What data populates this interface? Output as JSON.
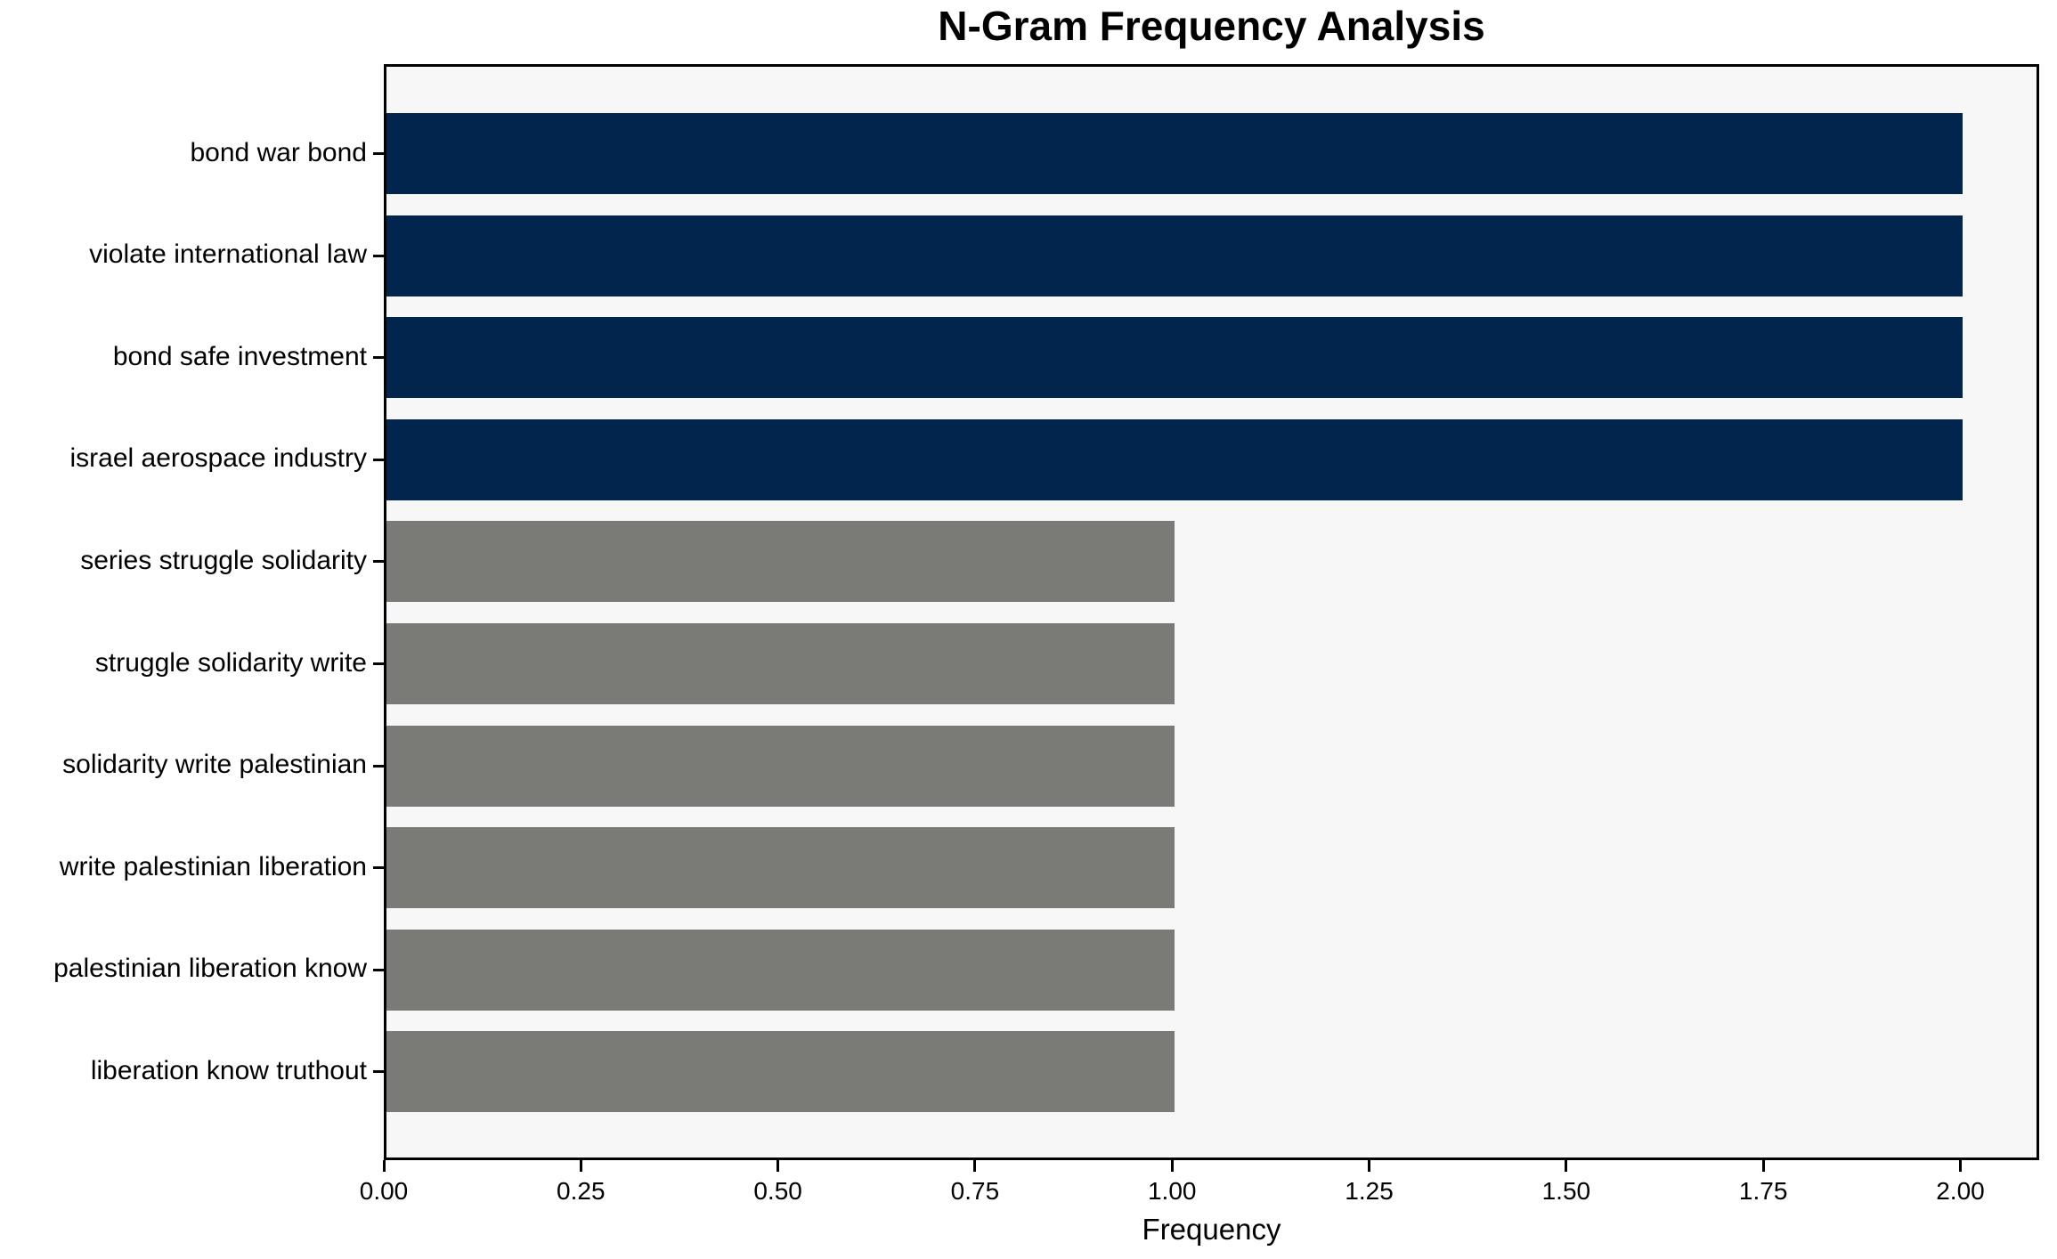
{
  "chart_data": {
    "type": "bar",
    "orientation": "horizontal",
    "title": "N-Gram Frequency Analysis",
    "xlabel": "Frequency",
    "ylabel": "",
    "categories": [
      "bond war bond",
      "violate international law",
      "bond safe investment",
      "israel aerospace industry",
      "series struggle solidarity",
      "struggle solidarity write",
      "solidarity write palestinian",
      "write palestinian liberation",
      "palestinian liberation know",
      "liberation know truthout"
    ],
    "values": [
      2,
      2,
      2,
      2,
      1,
      1,
      1,
      1,
      1,
      1
    ],
    "bar_colors": [
      "#02254e",
      "#02254e",
      "#02254e",
      "#02254e",
      "#7a7a76",
      "#7a7a76",
      "#7a7a76",
      "#7a7a76",
      "#7a7a76",
      "#7a7a76"
    ],
    "xlim": [
      0,
      2.1
    ],
    "x_ticks": [
      0.0,
      0.25,
      0.5,
      0.75,
      1.0,
      1.25,
      1.5,
      1.75,
      2.0
    ],
    "x_tick_labels": [
      "0.00",
      "0.25",
      "0.50",
      "0.75",
      "1.00",
      "1.25",
      "1.50",
      "1.75",
      "2.00"
    ],
    "grid": false,
    "legend": null,
    "colors": {
      "highlight_bar": "#02254e",
      "default_bar": "#7a7a76",
      "plot_background": "#f7f7f7",
      "figure_background": "#ffffff",
      "spine": "#000000",
      "text": "#000000"
    }
  }
}
